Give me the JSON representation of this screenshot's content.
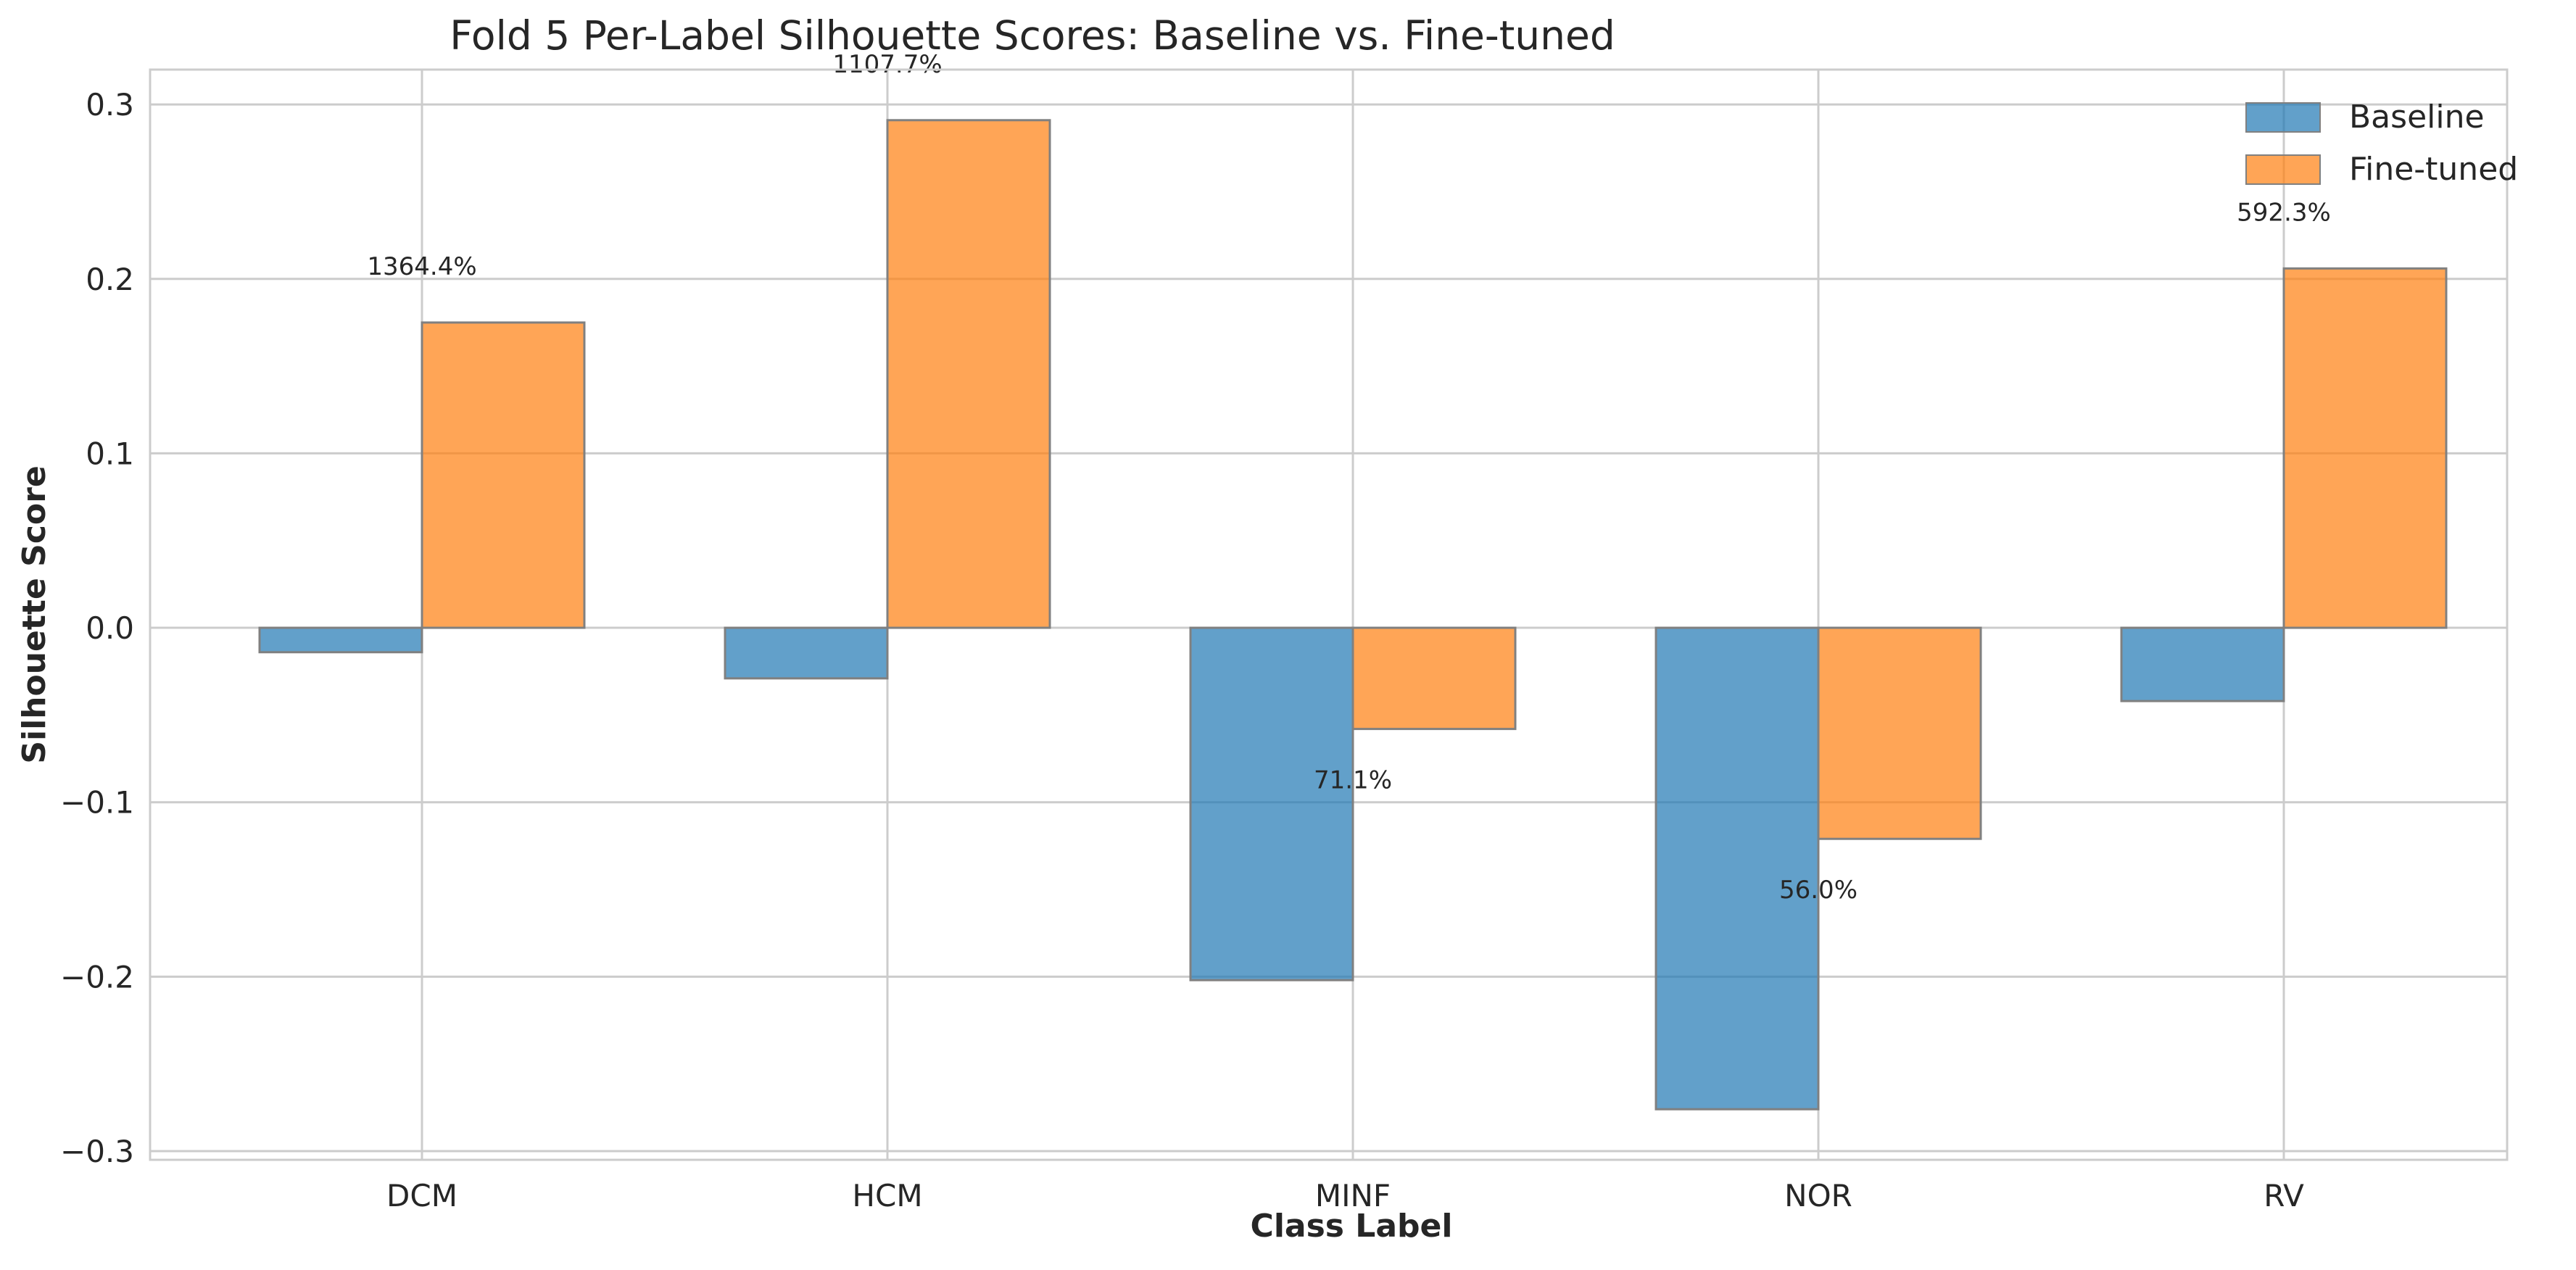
{
  "chart_data": {
    "type": "bar",
    "title": "Fold 5 Per-Label Silhouette Scores: Baseline vs. Fine-tuned",
    "xlabel": "Class Label",
    "ylabel": "Silhouette Score",
    "categories": [
      "DCM",
      "HCM",
      "MINF",
      "NOR",
      "RV"
    ],
    "series": [
      {
        "name": "Baseline",
        "color": "#1f77b4",
        "values": [
          -0.014,
          -0.029,
          -0.202,
          -0.276,
          -0.042
        ]
      },
      {
        "name": "Fine-tuned",
        "color": "#ff7f0e",
        "values": [
          0.175,
          0.291,
          -0.058,
          -0.121,
          0.206
        ]
      }
    ],
    "annotations": [
      "1364.4%",
      "1107.7%",
      "71.1%",
      "56.0%",
      "592.3%"
    ],
    "ylim": [
      -0.305,
      0.32
    ],
    "yticks": [
      0.3,
      0.2,
      0.1,
      0.0,
      -0.1,
      -0.2,
      -0.3
    ],
    "ytick_labels": [
      "0.3",
      "0.2",
      "0.1",
      "0.0",
      "−0.1",
      "−0.2",
      "−0.3"
    ],
    "grid": true,
    "legend_position": "top-right"
  }
}
